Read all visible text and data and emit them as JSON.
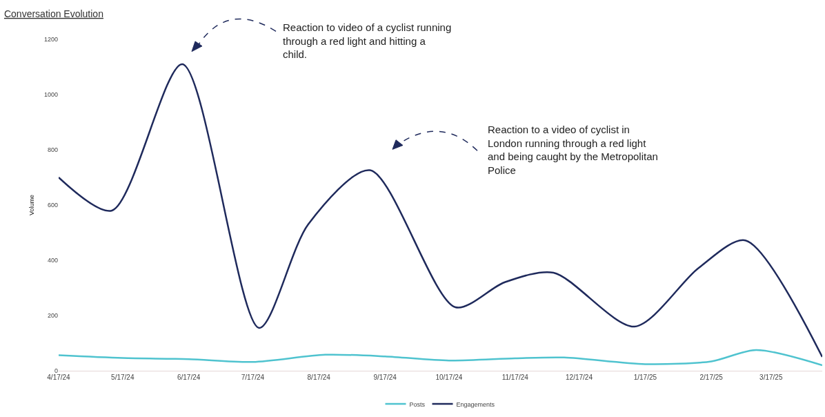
{
  "chart_data": {
    "type": "line",
    "title": "Conversation Evolution",
    "ylabel": "Volume",
    "annotations": [
      "Reaction to video of a cyclist running through a red light and hitting a child.",
      "Reaction to a video of cyclist in London running through a red light and being caught by the Metropolitan Police"
    ],
    "series": [
      {
        "name": "Posts",
        "color": "#4fc3cf",
        "x": [
          "2024-04-17",
          "2024-05-17",
          "2024-06-17",
          "2024-07-17",
          "2024-08-20",
          "2024-09-17",
          "2024-10-17",
          "2024-11-17",
          "2024-12-10",
          "2025-01-17",
          "2025-02-17",
          "2025-03-10",
          "2025-04-10"
        ],
        "values": [
          56,
          46,
          42,
          32,
          58,
          52,
          37,
          45,
          48,
          24,
          34,
          75,
          20
        ]
      },
      {
        "name": "Engagements",
        "color": "#1f2a5c",
        "x": [
          "2024-04-17",
          "2024-05-12",
          "2024-06-14",
          "2024-07-20",
          "2024-08-12",
          "2024-09-10",
          "2024-10-20",
          "2024-11-12",
          "2024-12-05",
          "2025-01-12",
          "2025-02-11",
          "2025-03-05",
          "2025-04-10"
        ],
        "values": [
          700,
          580,
          1110,
          155,
          530,
          726,
          230,
          320,
          355,
          160,
          372,
          472,
          50
        ]
      }
    ],
    "xlim": [
      "2024-04-17",
      "2025-04-10"
    ],
    "xticks": [
      {
        "value": "2024-04-17",
        "label": "4/17/24"
      },
      {
        "value": "2024-05-17",
        "label": "5/17/24"
      },
      {
        "value": "2024-06-17",
        "label": "6/17/24"
      },
      {
        "value": "2024-07-17",
        "label": "7/17/24"
      },
      {
        "value": "2024-08-17",
        "label": "8/17/24"
      },
      {
        "value": "2024-09-17",
        "label": "9/17/24"
      },
      {
        "value": "2024-10-17",
        "label": "10/17/24"
      },
      {
        "value": "2024-11-17",
        "label": "11/17/24"
      },
      {
        "value": "2024-12-17",
        "label": "12/17/24"
      },
      {
        "value": "2025-01-17",
        "label": "1/17/25"
      },
      {
        "value": "2025-02-17",
        "label": "2/17/25"
      },
      {
        "value": "2025-03-17",
        "label": "3/17/25"
      }
    ],
    "ylim": [
      0,
      1200
    ],
    "yticks": [
      0,
      200,
      400,
      600,
      800,
      1000,
      1200
    ],
    "grid": false,
    "legend": "bottom",
    "marker": "none",
    "line_style": "solid"
  }
}
